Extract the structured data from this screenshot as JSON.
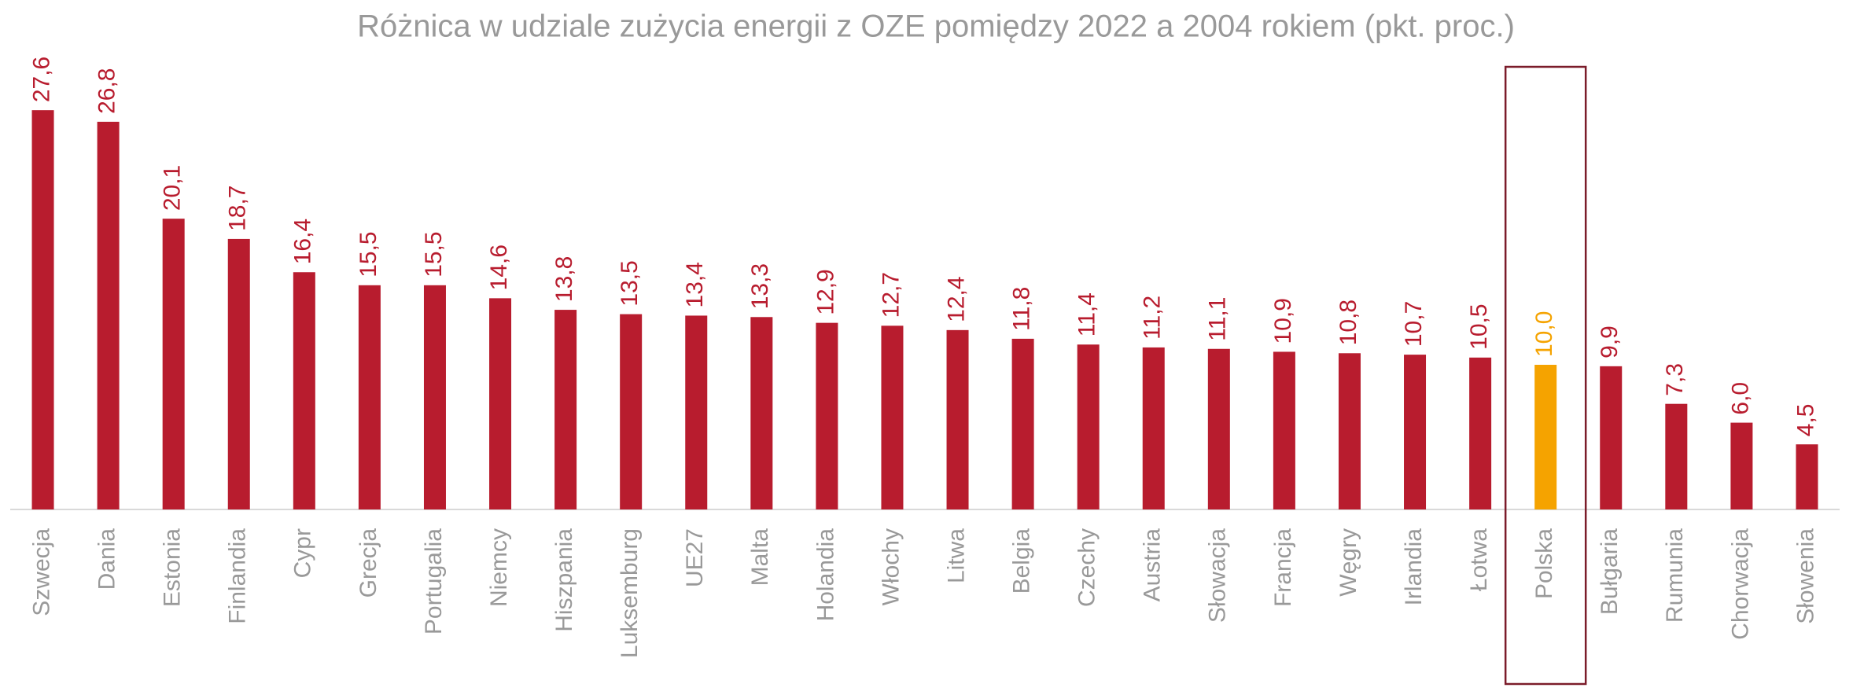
{
  "chart_data": {
    "type": "bar",
    "title": "Różnica w udziale zużycia energii z OZE pomiędzy 2022 a 2004 rokiem (pkt. proc.)",
    "categories": [
      "Szwecja",
      "Dania",
      "Estonia",
      "Finlandia",
      "Cypr",
      "Grecja",
      "Portugalia",
      "Niemcy",
      "Hiszpania",
      "Luksemburg",
      "UE27",
      "Malta",
      "Holandia",
      "Włochy",
      "Litwa",
      "Belgia",
      "Czechy",
      "Austria",
      "Słowacja",
      "Francja",
      "Węgry",
      "Irlandia",
      "Łotwa",
      "Polska",
      "Bułgaria",
      "Rumunia",
      "Chorwacja",
      "Słowenia"
    ],
    "values": [
      27.6,
      26.8,
      20.1,
      18.7,
      16.4,
      15.5,
      15.5,
      14.6,
      13.8,
      13.5,
      13.4,
      13.3,
      12.9,
      12.7,
      12.4,
      11.8,
      11.4,
      11.2,
      11.1,
      10.9,
      10.8,
      10.7,
      10.5,
      10.0,
      9.9,
      7.3,
      6.0,
      4.5
    ],
    "value_labels": [
      "27,6",
      "26,8",
      "20,1",
      "18,7",
      "16,4",
      "15,5",
      "15,5",
      "14,6",
      "13,8",
      "13,5",
      "13,4",
      "13,3",
      "12,9",
      "12,7",
      "12,4",
      "11,8",
      "11,4",
      "11,2",
      "11,1",
      "10,9",
      "10,8",
      "10,7",
      "10,5",
      "10,0",
      "9,9",
      "7,3",
      "6,0",
      "4,5"
    ],
    "colors": [
      "#b81c2e",
      "#b81c2e",
      "#b81c2e",
      "#b81c2e",
      "#b81c2e",
      "#b81c2e",
      "#b81c2e",
      "#b81c2e",
      "#b81c2e",
      "#b81c2e",
      "#b81c2e",
      "#b81c2e",
      "#b81c2e",
      "#b81c2e",
      "#b81c2e",
      "#b81c2e",
      "#b81c2e",
      "#b81c2e",
      "#b81c2e",
      "#b81c2e",
      "#b81c2e",
      "#b81c2e",
      "#b81c2e",
      "#f5a300",
      "#b81c2e",
      "#b81c2e",
      "#b81c2e",
      "#b81c2e"
    ],
    "ylim": [
      0,
      30
    ]
  }
}
